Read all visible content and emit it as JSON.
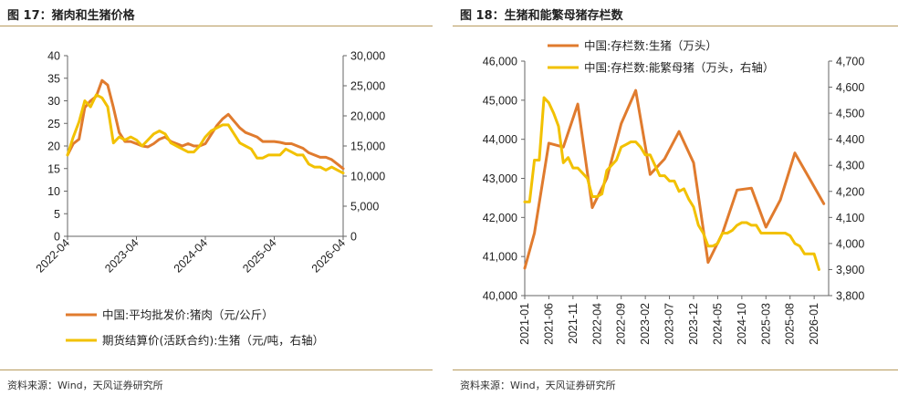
{
  "charts": [
    {
      "title": "图 17：猪肉和生猪价格",
      "source": "资料来源：Wind，天风证券研究所"
    },
    {
      "title": "图 18：生猪和能繁母猪存栏数",
      "source": "资料来源：Wind，天风证券研究所"
    }
  ],
  "chart_data": [
    {
      "type": "line",
      "title": "图 17：猪肉和生猪价格",
      "x_ticks": [
        "2022-04",
        "2023-04",
        "2024-04",
        "2025-04",
        "2026-04"
      ],
      "y_left": {
        "min": 0,
        "max": 40,
        "ticks": [
          0,
          5,
          10,
          15,
          20,
          25,
          30,
          35,
          40
        ],
        "tick_labels": [
          "0",
          "5",
          "10",
          "15",
          "20",
          "25",
          "30",
          "35",
          "40"
        ]
      },
      "y_right": {
        "min": 0,
        "max": 30000,
        "ticks": [
          0,
          5000,
          10000,
          15000,
          20000,
          25000,
          30000
        ],
        "tick_labels": [
          "0",
          "5,000",
          "10,000",
          "15,000",
          "20,000",
          "25,000",
          "30,000"
        ]
      },
      "legend_position": "bottom",
      "series": [
        {
          "name": "中国:平均批发价:猪肉（元/公斤）",
          "axis": "left",
          "color": "#e07b2e",
          "points": [
            [
              "2022-04",
              18.0
            ],
            [
              "2022-05",
              20.5
            ],
            [
              "2022-06",
              21.5
            ],
            [
              "2022-07",
              28.5
            ],
            [
              "2022-08",
              30.0
            ],
            [
              "2022-09",
              31.0
            ],
            [
              "2022-10",
              34.5
            ],
            [
              "2022-11",
              33.5
            ],
            [
              "2022-12",
              28.5
            ],
            [
              "2023-01",
              23.0
            ],
            [
              "2023-02",
              21.0
            ],
            [
              "2023-03",
              21.0
            ],
            [
              "2023-04",
              20.5
            ],
            [
              "2023-05",
              20.0
            ],
            [
              "2023-06",
              19.8
            ],
            [
              "2023-07",
              20.5
            ],
            [
              "2023-08",
              21.5
            ],
            [
              "2023-09",
              22.0
            ],
            [
              "2023-10",
              21.0
            ],
            [
              "2023-11",
              20.5
            ],
            [
              "2023-12",
              20.0
            ],
            [
              "2024-01",
              20.5
            ],
            [
              "2024-02",
              20.0
            ],
            [
              "2024-03",
              20.0
            ],
            [
              "2024-04",
              20.5
            ],
            [
              "2024-05",
              22.5
            ],
            [
              "2024-06",
              24.5
            ],
            [
              "2024-07",
              26.0
            ],
            [
              "2024-08",
              27.0
            ],
            [
              "2024-09",
              25.5
            ],
            [
              "2024-10",
              24.0
            ],
            [
              "2024-11",
              23.0
            ],
            [
              "2024-12",
              22.5
            ],
            [
              "2025-01",
              22.0
            ],
            [
              "2025-02",
              21.0
            ],
            [
              "2025-03",
              21.0
            ],
            [
              "2025-04",
              21.0
            ],
            [
              "2025-05",
              20.8
            ],
            [
              "2025-06",
              20.5
            ],
            [
              "2025-07",
              20.5
            ],
            [
              "2025-08",
              20.0
            ],
            [
              "2025-09",
              19.5
            ],
            [
              "2025-10",
              18.5
            ],
            [
              "2025-11",
              18.0
            ],
            [
              "2025-12",
              17.5
            ],
            [
              "2026-01",
              17.5
            ],
            [
              "2026-02",
              17.0
            ],
            [
              "2026-03",
              16.0
            ],
            [
              "2026-04",
              15.0
            ]
          ]
        },
        {
          "name": "期货结算价(活跃合约):生猪（元/吨，右轴）",
          "axis": "right",
          "color": "#f2c100",
          "points": [
            [
              "2022-04",
              13500
            ],
            [
              "2022-05",
              16500
            ],
            [
              "2022-06",
              19000
            ],
            [
              "2022-07",
              22500
            ],
            [
              "2022-08",
              21500
            ],
            [
              "2022-09",
              23500
            ],
            [
              "2022-10",
              23000
            ],
            [
              "2022-11",
              21500
            ],
            [
              "2022-12",
              15500
            ],
            [
              "2023-01",
              16500
            ],
            [
              "2023-02",
              16000
            ],
            [
              "2023-03",
              16500
            ],
            [
              "2023-04",
              16000
            ],
            [
              "2023-05",
              15000
            ],
            [
              "2023-06",
              16000
            ],
            [
              "2023-07",
              17000
            ],
            [
              "2023-08",
              17500
            ],
            [
              "2023-09",
              17000
            ],
            [
              "2023-10",
              15500
            ],
            [
              "2023-11",
              15000
            ],
            [
              "2023-12",
              14500
            ],
            [
              "2024-01",
              14000
            ],
            [
              "2024-02",
              14000
            ],
            [
              "2024-03",
              15000
            ],
            [
              "2024-04",
              16500
            ],
            [
              "2024-05",
              17500
            ],
            [
              "2024-06",
              18000
            ],
            [
              "2024-07",
              18500
            ],
            [
              "2024-08",
              18500
            ],
            [
              "2024-09",
              17000
            ],
            [
              "2024-10",
              15500
            ],
            [
              "2024-11",
              15000
            ],
            [
              "2024-12",
              14500
            ],
            [
              "2025-01",
              13000
            ],
            [
              "2025-02",
              13000
            ],
            [
              "2025-03",
              13500
            ],
            [
              "2025-04",
              13500
            ],
            [
              "2025-05",
              13500
            ],
            [
              "2025-06",
              14500
            ],
            [
              "2025-07",
              14000
            ],
            [
              "2025-08",
              13500
            ],
            [
              "2025-09",
              13500
            ],
            [
              "2025-10",
              12000
            ],
            [
              "2025-11",
              11500
            ],
            [
              "2025-12",
              11500
            ],
            [
              "2026-01",
              11000
            ],
            [
              "2026-02",
              11500
            ],
            [
              "2026-03",
              11000
            ],
            [
              "2026-04",
              10500
            ]
          ]
        }
      ]
    },
    {
      "type": "line",
      "title": "图 18：生猪和能繁母猪存栏数",
      "x_ticks": [
        "2021-01",
        "2021-06",
        "2021-11",
        "2022-04",
        "2022-09",
        "2023-02",
        "2023-07",
        "2023-12",
        "2024-05",
        "2024-10",
        "2025-03",
        "2025-08",
        "2026-01"
      ],
      "y_left": {
        "min": 40000,
        "max": 46000,
        "ticks": [
          40000,
          41000,
          42000,
          43000,
          44000,
          45000,
          46000
        ],
        "tick_labels": [
          "40,000",
          "41,000",
          "42,000",
          "43,000",
          "44,000",
          "45,000",
          "46,000"
        ]
      },
      "y_right": {
        "min": 3800,
        "max": 4700,
        "ticks": [
          3800,
          3900,
          4000,
          4100,
          4200,
          4300,
          4400,
          4500,
          4600,
          4700
        ],
        "tick_labels": [
          "3,800",
          "3,900",
          "4,000",
          "4,100",
          "4,200",
          "4,300",
          "4,400",
          "4,500",
          "4,600",
          "4,700"
        ]
      },
      "legend_position": "top",
      "series": [
        {
          "name": "中国:存栏数:生猪（万头）",
          "axis": "left",
          "color": "#e07b2e",
          "points": [
            [
              "2021-01",
              40700
            ],
            [
              "2021-03",
              41600
            ],
            [
              "2021-06",
              43900
            ],
            [
              "2021-09",
              43800
            ],
            [
              "2021-12",
              44900
            ],
            [
              "2022-03",
              42250
            ],
            [
              "2022-06",
              43000
            ],
            [
              "2022-09",
              44400
            ],
            [
              "2022-12",
              45250
            ],
            [
              "2023-03",
              43100
            ],
            [
              "2023-06",
              43500
            ],
            [
              "2023-09",
              44200
            ],
            [
              "2023-12",
              43400
            ],
            [
              "2024-03",
              40850
            ],
            [
              "2024-06",
              41600
            ],
            [
              "2024-09",
              42700
            ],
            [
              "2024-12",
              42750
            ],
            [
              "2025-03",
              41750
            ],
            [
              "2025-06",
              42450
            ],
            [
              "2025-09",
              43650
            ],
            [
              "2025-12",
              43000
            ],
            [
              "2026-03",
              42350
            ]
          ]
        },
        {
          "name": "中国:存栏数:能繁母猪（万头，右轴）",
          "axis": "right",
          "color": "#f2c100",
          "points": [
            [
              "2021-01",
              4160
            ],
            [
              "2021-02",
              4160
            ],
            [
              "2021-03",
              4320
            ],
            [
              "2021-04",
              4320
            ],
            [
              "2021-05",
              4560
            ],
            [
              "2021-06",
              4540
            ],
            [
              "2021-07",
              4500
            ],
            [
              "2021-08",
              4450
            ],
            [
              "2021-09",
              4310
            ],
            [
              "2021-10",
              4330
            ],
            [
              "2021-11",
              4290
            ],
            [
              "2021-12",
              4290
            ],
            [
              "2022-01",
              4270
            ],
            [
              "2022-02",
              4250
            ],
            [
              "2022-03",
              4180
            ],
            [
              "2022-04",
              4180
            ],
            [
              "2022-05",
              4190
            ],
            [
              "2022-06",
              4280
            ],
            [
              "2022-07",
              4300
            ],
            [
              "2022-08",
              4320
            ],
            [
              "2022-09",
              4370
            ],
            [
              "2022-10",
              4380
            ],
            [
              "2022-11",
              4390
            ],
            [
              "2022-12",
              4390
            ],
            [
              "2023-01",
              4370
            ],
            [
              "2023-02",
              4340
            ],
            [
              "2023-03",
              4340
            ],
            [
              "2023-04",
              4300
            ],
            [
              "2023-05",
              4260
            ],
            [
              "2023-06",
              4260
            ],
            [
              "2023-07",
              4240
            ],
            [
              "2023-08",
              4240
            ],
            [
              "2023-09",
              4200
            ],
            [
              "2023-10",
              4210
            ],
            [
              "2023-11",
              4170
            ],
            [
              "2023-12",
              4140
            ],
            [
              "2024-01",
              4070
            ],
            [
              "2024-02",
              4040
            ],
            [
              "2024-03",
              3990
            ],
            [
              "2024-04",
              3990
            ],
            [
              "2024-05",
              4000
            ],
            [
              "2024-06",
              4040
            ],
            [
              "2024-07",
              4040
            ],
            [
              "2024-08",
              4050
            ],
            [
              "2024-09",
              4070
            ],
            [
              "2024-10",
              4080
            ],
            [
              "2024-11",
              4080
            ],
            [
              "2024-12",
              4070
            ],
            [
              "2025-01",
              4070
            ],
            [
              "2025-02",
              4040
            ],
            [
              "2025-03",
              4040
            ],
            [
              "2025-04",
              4040
            ],
            [
              "2025-05",
              4040
            ],
            [
              "2025-06",
              4040
            ],
            [
              "2025-07",
              4040
            ],
            [
              "2025-08",
              4030
            ],
            [
              "2025-09",
              4000
            ],
            [
              "2025-10",
              3990
            ],
            [
              "2025-11",
              3960
            ],
            [
              "2025-12",
              3960
            ],
            [
              "2026-01",
              3960
            ],
            [
              "2026-02",
              3900
            ]
          ]
        }
      ]
    }
  ]
}
